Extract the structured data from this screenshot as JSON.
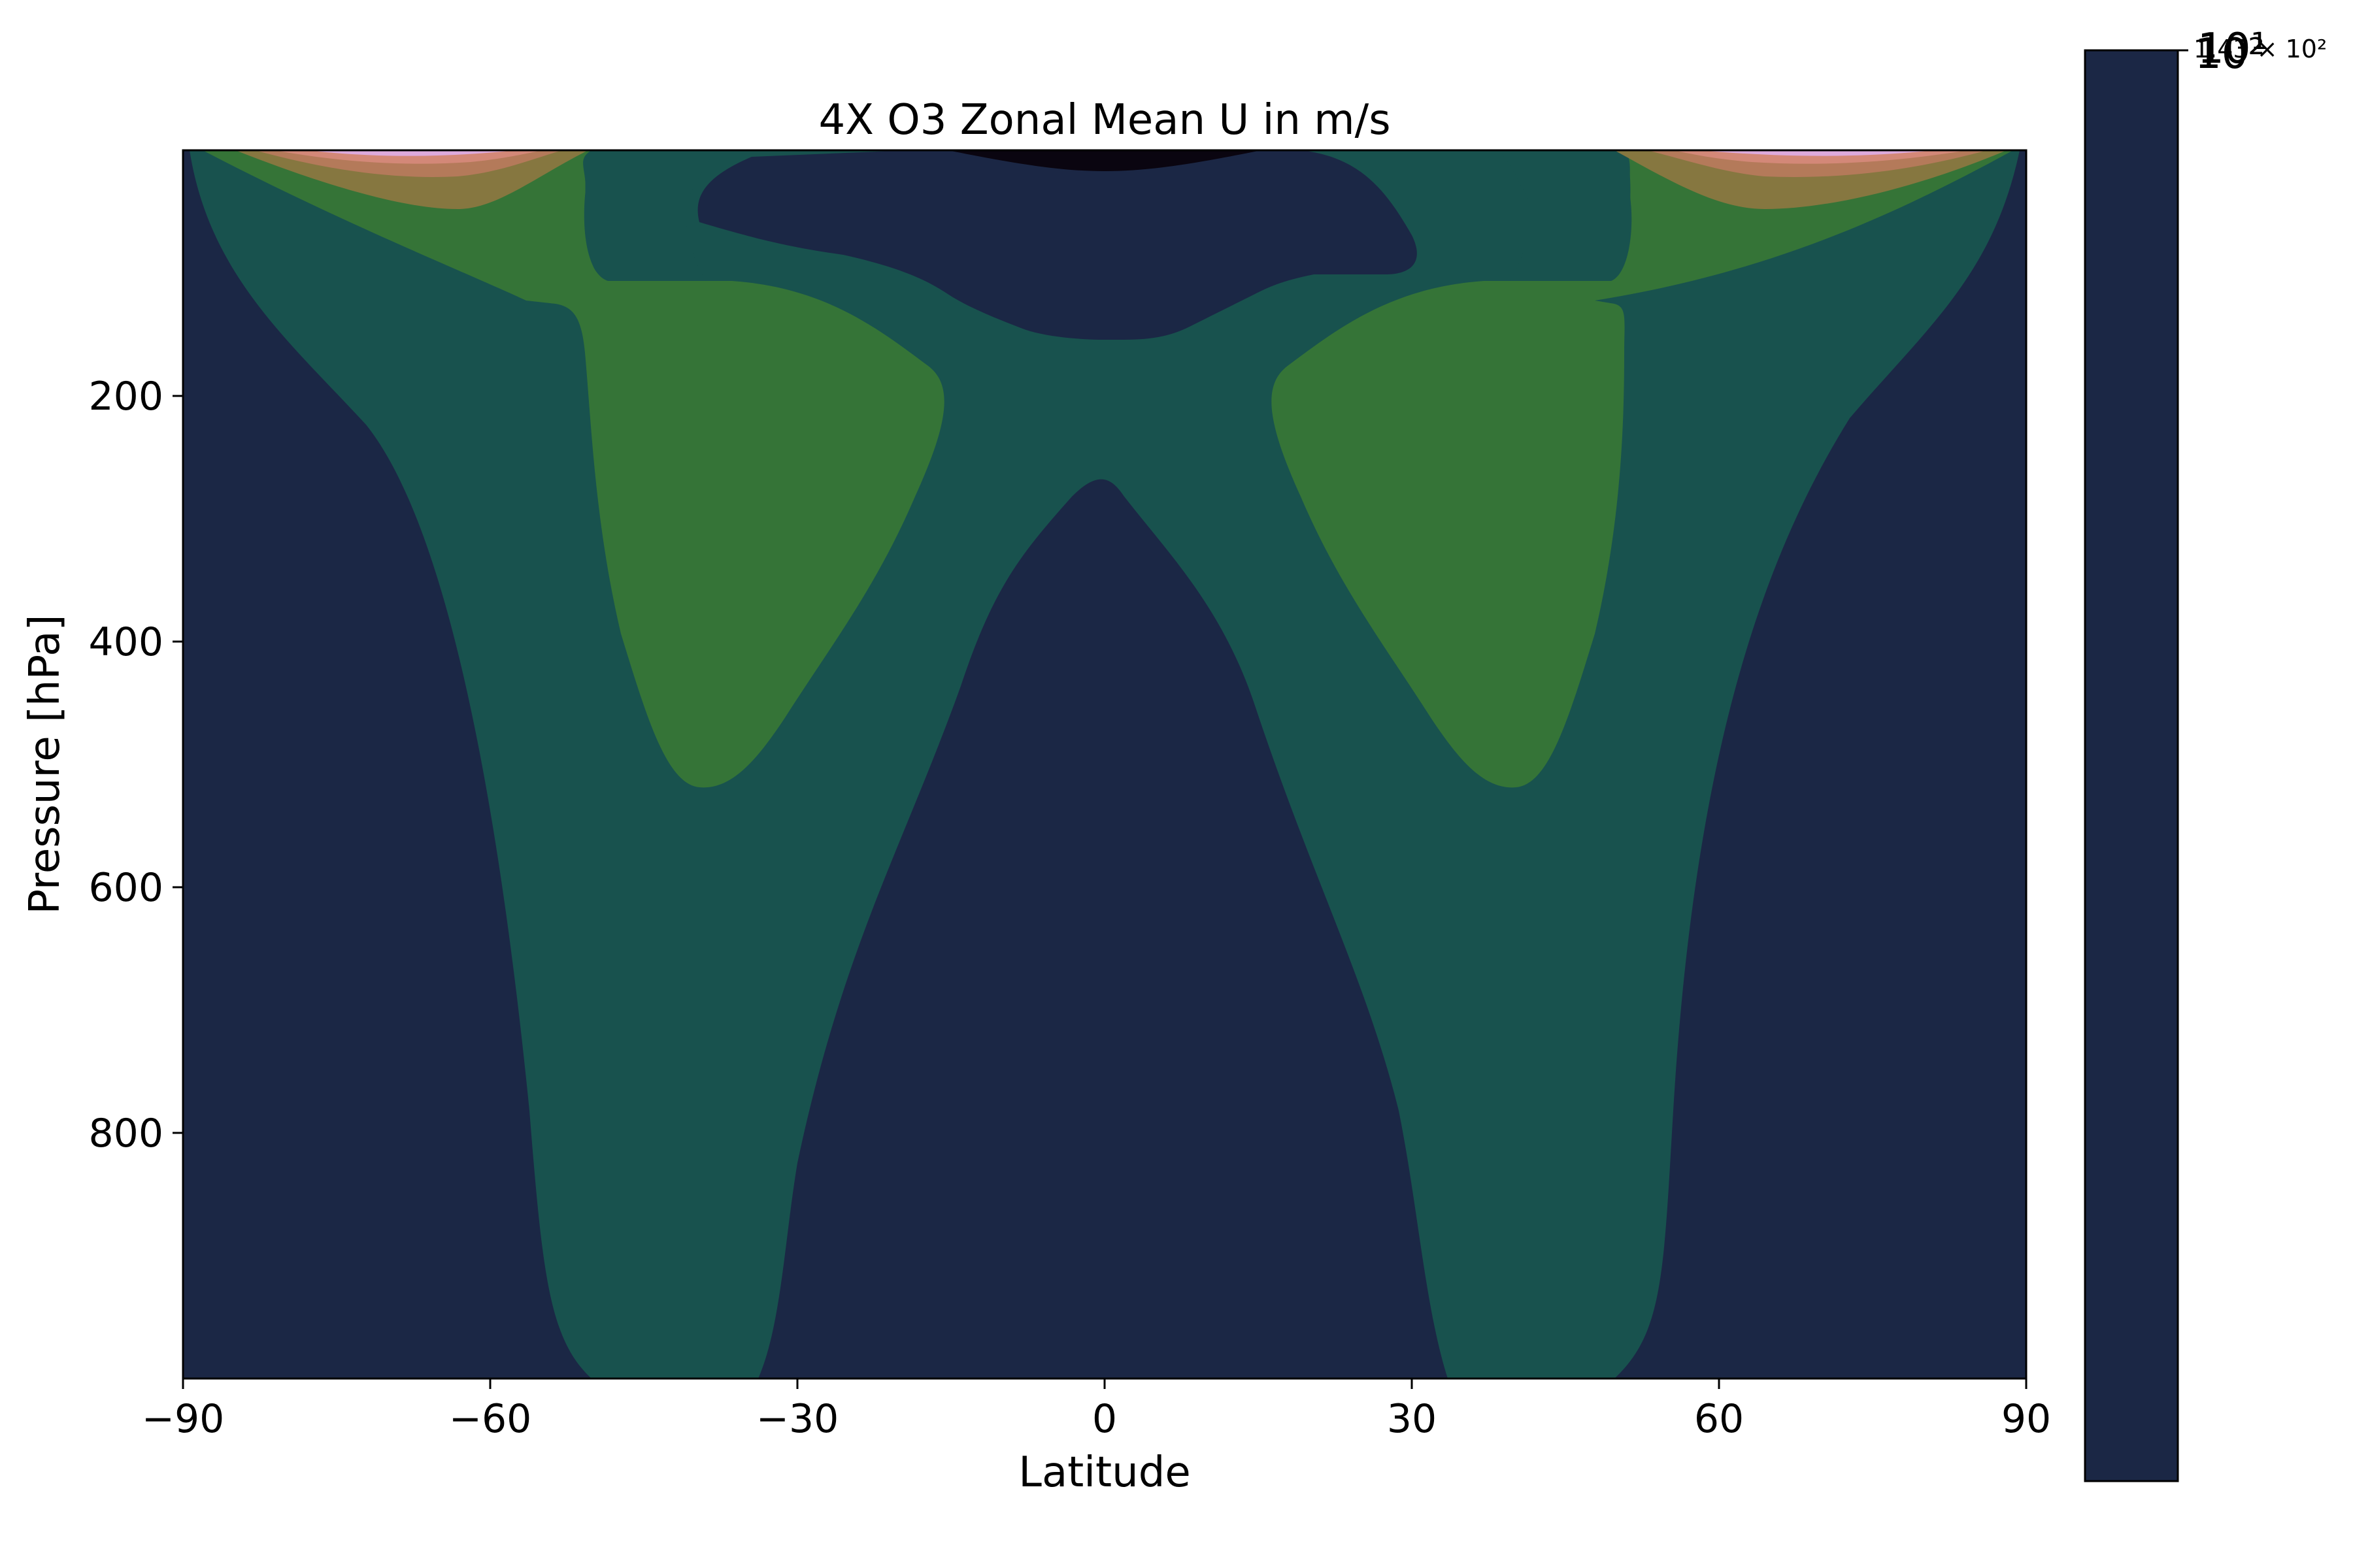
{
  "chart_data": {
    "type": "contourf",
    "title": "4X O3 Zonal Mean U in m/s",
    "xlabel": "Latitude",
    "ylabel": "Pressure [hPa]",
    "xlim": [
      -90,
      90
    ],
    "ylim": [
      1000,
      0
    ],
    "xticks": [
      "−90",
      "−60",
      "−30",
      "0",
      "30",
      "60",
      "90"
    ],
    "xtick_values": [
      -90,
      -60,
      -30,
      0,
      30,
      60,
      90
    ],
    "yticks": [
      "200",
      "400",
      "600",
      "800"
    ],
    "ytick_values": [
      200,
      400,
      600,
      800
    ],
    "colorbar": {
      "scale": "log",
      "labels": [
        "10²",
        "1.43 × 10²",
        "10¹"
      ]
    },
    "colors": {
      "background_level": "#1b2745",
      "level_2": "#18524e",
      "level_3": "#357437",
      "level_4": "#867740",
      "level_5": "#b47a5a",
      "level_6": "#d38878",
      "level_7": "#ddaadc",
      "core_min": "#0a0510"
    }
  }
}
